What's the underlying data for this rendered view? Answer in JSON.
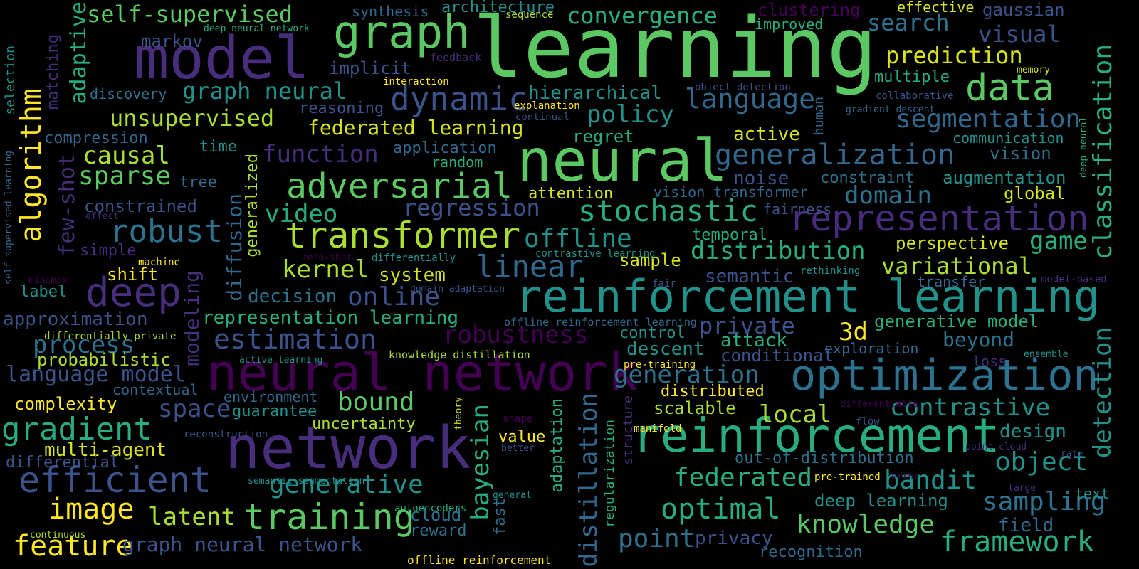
{
  "cloud": {
    "words": [
      {
        "text": "learning",
        "color": "#5cc863",
        "weight": 1.0
      },
      {
        "text": "neural",
        "color": "#5cc863",
        "weight": 0.8
      },
      {
        "text": "model",
        "color": "#472d7b",
        "weight": 0.8
      },
      {
        "text": "network",
        "color": "#472d7b",
        "weight": 0.75
      },
      {
        "text": "neural network",
        "color": "#440154",
        "weight": 0.7
      },
      {
        "text": "reinforcement",
        "color": "#27ad81",
        "weight": 0.7
      },
      {
        "text": "reinforcement learning",
        "color": "#21918c",
        "weight": 0.6
      },
      {
        "text": "optimization",
        "color": "#2c728e",
        "weight": 0.6
      },
      {
        "text": "graph",
        "color": "#5cc863",
        "weight": 0.6
      },
      {
        "text": "representation",
        "color": "#472d7b",
        "weight": 0.55
      },
      {
        "text": "deep",
        "color": "#472d7b",
        "weight": 0.55
      },
      {
        "text": "transformer",
        "color": "#aadc32",
        "weight": 0.5
      },
      {
        "text": "adversarial",
        "color": "#5cc863",
        "weight": 0.5
      },
      {
        "text": "data",
        "color": "#5cc863",
        "weight": 0.5
      },
      {
        "text": "dynamic",
        "color": "#3b528b",
        "weight": 0.45
      },
      {
        "text": "training",
        "color": "#5cc863",
        "weight": 0.45
      },
      {
        "text": "efficient",
        "color": "#3b528b",
        "weight": 0.45
      },
      {
        "text": "stochastic",
        "color": "#27ad81",
        "weight": 0.45
      },
      {
        "text": "generalization",
        "color": "#31688e",
        "weight": 0.45
      },
      {
        "text": "gradient",
        "color": "#27ad81",
        "weight": 0.45
      },
      {
        "text": "robust",
        "color": "#2c728e",
        "weight": 0.4
      },
      {
        "text": "linear",
        "color": "#31688e",
        "weight": 0.4
      },
      {
        "text": "estimation",
        "color": "#3b528b",
        "weight": 0.4
      },
      {
        "text": "classification",
        "color": "#27ad81",
        "weight": 0.4
      },
      {
        "text": "algorithm",
        "color": "#fde725",
        "weight": 0.4
      },
      {
        "text": "segmentation",
        "color": "#31688e",
        "weight": 0.4
      },
      {
        "text": "robustness",
        "color": "#440154",
        "weight": 0.4
      },
      {
        "text": "image",
        "color": "#fde725",
        "weight": 0.4
      },
      {
        "text": "feature",
        "color": "#fde725",
        "weight": 0.4
      },
      {
        "text": "distribution",
        "color": "#27ad81",
        "weight": 0.35
      },
      {
        "text": "generative",
        "color": "#21918c",
        "weight": 0.35
      },
      {
        "text": "language",
        "color": "#31688e",
        "weight": 0.35
      },
      {
        "text": "framework",
        "color": "#27ad81",
        "weight": 0.35
      },
      {
        "text": "contrastive",
        "color": "#21918c",
        "weight": 0.35
      },
      {
        "text": "bandit",
        "color": "#21918c",
        "weight": 0.35
      },
      {
        "text": "object",
        "color": "#21918c",
        "weight": 0.35
      },
      {
        "text": "optimal",
        "color": "#27ad81",
        "weight": 0.35
      },
      {
        "text": "knowledge",
        "color": "#5cc863",
        "weight": 0.35
      },
      {
        "text": "offline",
        "color": "#21918c",
        "weight": 0.35
      },
      {
        "text": "online",
        "color": "#3b528b",
        "weight": 0.35
      },
      {
        "text": "unsupervised",
        "color": "#aadc32",
        "weight": 0.3
      },
      {
        "text": "self-supervised",
        "color": "#5cc863",
        "weight": 0.3
      },
      {
        "text": "convergence",
        "color": "#27ad81",
        "weight": 0.3
      },
      {
        "text": "prediction",
        "color": "#d8e219",
        "weight": 0.3
      },
      {
        "text": "search",
        "color": "#2c728e",
        "weight": 0.3
      },
      {
        "text": "visual",
        "color": "#3b528b",
        "weight": 0.3
      },
      {
        "text": "policy",
        "color": "#21918c",
        "weight": 0.3
      },
      {
        "text": "graph neural",
        "color": "#21918c",
        "weight": 0.3
      },
      {
        "text": "hierarchical",
        "color": "#21918c",
        "weight": 0.25
      },
      {
        "text": "sparse",
        "color": "#5cc863",
        "weight": 0.3
      },
      {
        "text": "causal",
        "color": "#aadc32",
        "weight": 0.3
      },
      {
        "text": "function",
        "color": "#472d7b",
        "weight": 0.3
      },
      {
        "text": "regression",
        "color": "#3b528b",
        "weight": 0.3
      },
      {
        "text": "kernel",
        "color": "#aadc32",
        "weight": 0.3
      },
      {
        "text": "video",
        "color": "#27ad81",
        "weight": 0.3
      },
      {
        "text": "domain",
        "color": "#2c728e",
        "weight": 0.3
      },
      {
        "text": "game",
        "color": "#27ad81",
        "weight": 0.3
      },
      {
        "text": "variational",
        "color": "#aadc32",
        "weight": 0.3
      },
      {
        "text": "detection",
        "color": "#21918c",
        "weight": 0.3
      },
      {
        "text": "private",
        "color": "#3b528b",
        "weight": 0.3
      },
      {
        "text": "3d",
        "color": "#fde725",
        "weight": 0.3
      },
      {
        "text": "process",
        "color": "#2c728e",
        "weight": 0.3
      },
      {
        "text": "language model",
        "color": "#3b528b",
        "weight": 0.3
      },
      {
        "text": "space",
        "color": "#3b528b",
        "weight": 0.3
      },
      {
        "text": "bound",
        "color": "#5cc863",
        "weight": 0.3
      },
      {
        "text": "bayesian",
        "color": "#27ad81",
        "weight": 0.3
      },
      {
        "text": "distillation",
        "color": "#31688e",
        "weight": 0.3
      },
      {
        "text": "generation",
        "color": "#2c728e",
        "weight": 0.3
      },
      {
        "text": "local",
        "color": "#aadc32",
        "weight": 0.3
      },
      {
        "text": "federated",
        "color": "#27ad81",
        "weight": 0.3
      },
      {
        "text": "sampling",
        "color": "#2c728e",
        "weight": 0.3
      },
      {
        "text": "point",
        "color": "#2c728e",
        "weight": 0.3
      },
      {
        "text": "latent",
        "color": "#aadc32",
        "weight": 0.3
      },
      {
        "text": "federated learning",
        "color": "#d8e219",
        "weight": 0.25
      },
      {
        "text": "few-shot",
        "color": "#472d7b",
        "weight": 0.25
      },
      {
        "text": "adaptive",
        "color": "#27ad81",
        "weight": 0.25
      },
      {
        "text": "diffusion",
        "color": "#31688e",
        "weight": 0.25
      },
      {
        "text": "modeling",
        "color": "#472d7b",
        "weight": 0.25
      },
      {
        "text": "markov",
        "color": "#3b528b",
        "weight": 0.22
      },
      {
        "text": "implicit",
        "color": "#3b528b",
        "weight": 0.22
      },
      {
        "text": "decision",
        "color": "#2c728e",
        "weight": 0.22
      },
      {
        "text": "system",
        "color": "#d8e219",
        "weight": 0.22
      },
      {
        "text": "approximation",
        "color": "#3b528b",
        "weight": 0.22
      },
      {
        "text": "representation learning",
        "color": "#27ad81",
        "weight": 0.22
      },
      {
        "text": "multi-agent",
        "color": "#d8e219",
        "weight": 0.22
      },
      {
        "text": "graph neural network",
        "color": "#3b528b",
        "weight": 0.22
      },
      {
        "text": "uncertainty",
        "color": "#aadc32",
        "weight": 0.2
      },
      {
        "text": "guarantee",
        "color": "#21918c",
        "weight": 0.2
      },
      {
        "text": "complexity",
        "color": "#fde725",
        "weight": 0.2
      },
      {
        "text": "probabilistic",
        "color": "#aadc32",
        "weight": 0.2
      },
      {
        "text": "constrained",
        "color": "#3b528b",
        "weight": 0.2
      },
      {
        "text": "active",
        "color": "#d8e219",
        "weight": 0.2
      },
      {
        "text": "noise",
        "color": "#3b528b",
        "weight": 0.2
      },
      {
        "text": "attention",
        "color": "#d8e219",
        "weight": 0.2
      },
      {
        "text": "regret",
        "color": "#27ad81",
        "weight": 0.2
      },
      {
        "text": "attack",
        "color": "#27ad81",
        "weight": 0.2
      },
      {
        "text": "descent",
        "color": "#21918c",
        "weight": 0.2
      },
      {
        "text": "conditional",
        "color": "#3b528b",
        "weight": 0.2
      },
      {
        "text": "perspective",
        "color": "#d8e219",
        "weight": 0.2
      },
      {
        "text": "generative model",
        "color": "#27ad81",
        "weight": 0.2
      },
      {
        "text": "beyond",
        "color": "#2c728e",
        "weight": 0.2
      },
      {
        "text": "semantic",
        "color": "#3b528b",
        "weight": 0.2
      },
      {
        "text": "sample",
        "color": "#d8e219",
        "weight": 0.2
      },
      {
        "text": "augmentation",
        "color": "#21918c",
        "weight": 0.2
      },
      {
        "text": "design",
        "color": "#21918c",
        "weight": 0.2
      },
      {
        "text": "deep learning",
        "color": "#21918c",
        "weight": 0.2
      },
      {
        "text": "value",
        "color": "#fde725",
        "weight": 0.18
      },
      {
        "text": "scalable",
        "color": "#aadc32",
        "weight": 0.18
      },
      {
        "text": "distributed",
        "color": "#fde725",
        "weight": 0.18
      },
      {
        "text": "out-of-distribution",
        "color": "#2c728e",
        "weight": 0.18
      },
      {
        "text": "privacy",
        "color": "#3b528b",
        "weight": 0.18
      },
      {
        "text": "cloud",
        "color": "#2c728e",
        "weight": 0.18
      },
      {
        "text": "reward",
        "color": "#2c728e",
        "weight": 0.18
      },
      {
        "text": "field",
        "color": "#31688e",
        "weight": 0.18
      },
      {
        "text": "vision",
        "color": "#2c728e",
        "weight": 0.18
      },
      {
        "text": "global",
        "color": "#d8e219",
        "weight": 0.18
      },
      {
        "text": "multiple",
        "color": "#27ad81",
        "weight": 0.18
      },
      {
        "text": "communication",
        "color": "#21918c",
        "weight": 0.15
      },
      {
        "text": "control",
        "color": "#21918c",
        "weight": 0.15
      },
      {
        "text": "temporal",
        "color": "#27ad81",
        "weight": 0.15
      },
      {
        "text": "fairness",
        "color": "#3b528b",
        "weight": 0.15
      },
      {
        "text": "vision transformer",
        "color": "#31688e",
        "weight": 0.15
      },
      {
        "text": "constraint",
        "color": "#2c728e",
        "weight": 0.15
      },
      {
        "text": "exploration",
        "color": "#31688e",
        "weight": 0.15
      },
      {
        "text": "transfer",
        "color": "#31688e",
        "weight": 0.15
      },
      {
        "text": "loss",
        "color": "#472d7b",
        "weight": 0.15
      },
      {
        "text": "environment",
        "color": "#31688e",
        "weight": 0.15
      },
      {
        "text": "differential",
        "color": "#3b528b",
        "weight": 0.15
      },
      {
        "text": "contextual",
        "color": "#31688e",
        "weight": 0.15
      },
      {
        "text": "label",
        "color": "#21918c",
        "weight": 0.15
      },
      {
        "text": "shift",
        "color": "#fde725",
        "weight": 0.15
      },
      {
        "text": "simple",
        "color": "#472d7b",
        "weight": 0.15
      },
      {
        "text": "tree",
        "color": "#31688e",
        "weight": 0.15
      },
      {
        "text": "time",
        "color": "#21918c",
        "weight": 0.15
      },
      {
        "text": "compression",
        "color": "#31688e",
        "weight": 0.15
      },
      {
        "text": "discovery",
        "color": "#2c728e",
        "weight": 0.15
      },
      {
        "text": "reasoning",
        "color": "#3b528b",
        "weight": 0.15
      },
      {
        "text": "application",
        "color": "#31688e",
        "weight": 0.15
      },
      {
        "text": "random",
        "color": "#27ad81",
        "weight": 0.15
      },
      {
        "text": "generalized",
        "color": "#aadc32",
        "weight": 0.15
      },
      {
        "text": "matching",
        "color": "#472d7b",
        "weight": 0.15
      },
      {
        "text": "selection",
        "color": "#21918c",
        "weight": 0.12
      },
      {
        "text": "synthesis",
        "color": "#31688e",
        "weight": 0.12
      },
      {
        "text": "architecture",
        "color": "#21918c",
        "weight": 0.12
      },
      {
        "text": "clustering",
        "color": "#440154",
        "weight": 0.15
      },
      {
        "text": "effective",
        "color": "#d8e219",
        "weight": 0.12
      },
      {
        "text": "gaussian",
        "color": "#3b528b",
        "weight": 0.15
      },
      {
        "text": "improved",
        "color": "#27ad81",
        "weight": 0.12
      },
      {
        "text": "human",
        "color": "#31688e",
        "weight": 0.12
      },
      {
        "text": "regularization",
        "color": "#27ad81",
        "weight": 0.12
      },
      {
        "text": "structure",
        "color": "#472d7b",
        "weight": 0.12
      },
      {
        "text": "adaptation",
        "color": "#27ad81",
        "weight": 0.15
      },
      {
        "text": "fast",
        "color": "#2c728e",
        "weight": 0.15
      },
      {
        "text": "recognition",
        "color": "#31688e",
        "weight": 0.15
      },
      {
        "text": "text",
        "color": "#21918c",
        "weight": 0.12
      },
      {
        "text": "knowledge distillation",
        "color": "#aadc32",
        "weight": 0.1
      },
      {
        "text": "active learning",
        "color": "#21918c",
        "weight": 0.08
      },
      {
        "text": "pre-training",
        "color": "#fde725",
        "weight": 0.08
      },
      {
        "text": "offline reinforcement learning",
        "color": "#31688e",
        "weight": 0.08
      },
      {
        "text": "offline reinforcement",
        "color": "#fde725",
        "weight": 0.1
      },
      {
        "text": "semantic segmentation",
        "color": "#21918c",
        "weight": 0.08
      },
      {
        "text": "differentially private",
        "color": "#aadc32",
        "weight": 0.08
      },
      {
        "text": "contrastive learning",
        "color": "#21918c",
        "weight": 0.08
      },
      {
        "text": "domain adaptation",
        "color": "#3b528b",
        "weight": 0.08
      },
      {
        "text": "deep neural network",
        "color": "#27ad81",
        "weight": 0.08
      },
      {
        "text": "deep neural",
        "color": "#27ad81",
        "weight": 0.08
      },
      {
        "text": "object detection",
        "color": "#3b528b",
        "weight": 0.08
      },
      {
        "text": "gradient descent",
        "color": "#31688e",
        "weight": 0.08
      },
      {
        "text": "self-supervised learning",
        "color": "#31688e",
        "weight": 0.08
      },
      {
        "text": "explanation",
        "color": "#fde725",
        "weight": 0.08
      },
      {
        "text": "continual",
        "color": "#3b528b",
        "weight": 0.08
      },
      {
        "text": "interaction",
        "color": "#fde725",
        "weight": 0.08
      },
      {
        "text": "feedback",
        "color": "#472d7b",
        "weight": 0.08
      },
      {
        "text": "sequence",
        "color": "#aadc32",
        "weight": 0.08
      },
      {
        "text": "memory",
        "color": "#d8e219",
        "weight": 0.08
      },
      {
        "text": "collaborative",
        "color": "#3b528b",
        "weight": 0.08
      },
      {
        "text": "effect",
        "color": "#472d7b",
        "weight": 0.08
      },
      {
        "text": "machine",
        "color": "#fde725",
        "weight": 0.08
      },
      {
        "text": "minimax",
        "color": "#440154",
        "weight": 0.08
      },
      {
        "text": "zero-shot",
        "color": "#440154",
        "weight": 0.08
      },
      {
        "text": "differentially",
        "color": "#21918c",
        "weight": 0.08
      },
      {
        "text": "fair",
        "color": "#3b528b",
        "weight": 0.08
      },
      {
        "text": "rethinking",
        "color": "#21918c",
        "weight": 0.08
      },
      {
        "text": "model-based",
        "color": "#472d7b",
        "weight": 0.08
      },
      {
        "text": "ensemble",
        "color": "#21918c",
        "weight": 0.08
      },
      {
        "text": "differentiable",
        "color": "#440154",
        "weight": 0.08
      },
      {
        "text": "flow",
        "color": "#3b528b",
        "weight": 0.08
      },
      {
        "text": "manifold",
        "color": "#fde725",
        "weight": 0.08
      },
      {
        "text": "shape",
        "color": "#440154",
        "weight": 0.08
      },
      {
        "text": "theory",
        "color": "#d8e219",
        "weight": 0.08
      },
      {
        "text": "better",
        "color": "#3b528b",
        "weight": 0.08
      },
      {
        "text": "reconstruction",
        "color": "#3b528b",
        "weight": 0.08
      },
      {
        "text": "pre-trained",
        "color": "#fde725",
        "weight": 0.08
      },
      {
        "text": "error",
        "color": "#440154",
        "weight": 0.08
      },
      {
        "text": "point cloud",
        "color": "#472d7b",
        "weight": 0.08
      },
      {
        "text": "rate",
        "color": "#3b528b",
        "weight": 0.08
      },
      {
        "text": "large",
        "color": "#472d7b",
        "weight": 0.08
      },
      {
        "text": "general",
        "color": "#21918c",
        "weight": 0.08
      },
      {
        "text": "autoencoders",
        "color": "#27ad81",
        "weight": 0.08
      },
      {
        "text": "continuous",
        "color": "#aadc32",
        "weight": 0.08
      }
    ]
  }
}
